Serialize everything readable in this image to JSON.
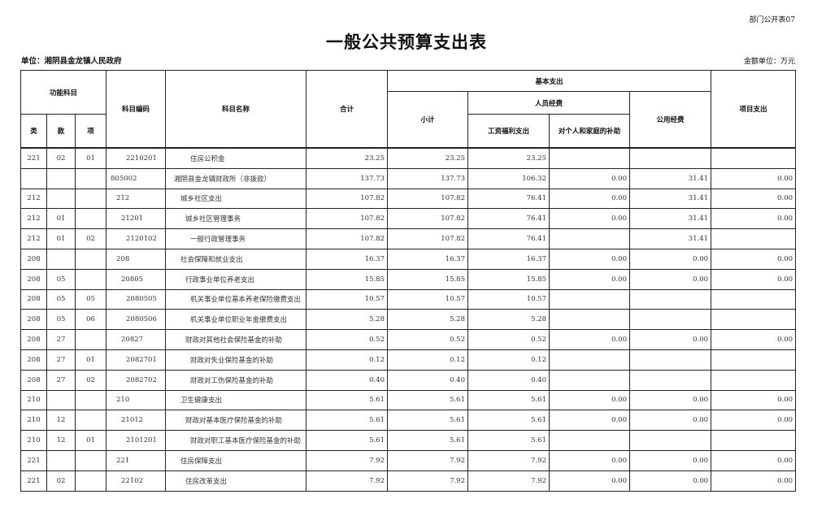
{
  "header": {
    "form_code": "部门公开表07",
    "title": "一般公共预算支出表",
    "unit": "单位：湘阴县金龙镇人民政府",
    "money_unit": "金额单位：万元"
  },
  "columns": {
    "func": "功能科目",
    "lei": "类",
    "kuan": "款",
    "xiang": "项",
    "code": "科目编码",
    "name": "科目名称",
    "total": "合计",
    "basic": "基本支出",
    "subtotal": "小计",
    "personnel": "人员经费",
    "salary": "工资福利支出",
    "subsidy": "对个人和家庭的补助",
    "public": "公用经费",
    "project": "项目支出"
  },
  "rows": [
    [
      "221",
      "02",
      "01",
      "2210201",
      "住房公积金",
      "23.25",
      "23.25",
      "23.25",
      "",
      "",
      ""
    ],
    [
      "",
      "",
      "",
      "805002",
      "湘阴县金龙镇财政所（非拨款）",
      "137.73",
      "137.73",
      "106.32",
      "0.00",
      "31.41",
      "0.00"
    ],
    [
      "212",
      "",
      "",
      "212",
      "城乡社区支出",
      "107.82",
      "107.82",
      "76.41",
      "0.00",
      "31.41",
      "0.00"
    ],
    [
      "212",
      "01",
      "",
      "21201",
      "城乡社区管理事务",
      "107.82",
      "107.82",
      "76.41",
      "0.00",
      "31.41",
      "0.00"
    ],
    [
      "212",
      "01",
      "02",
      "2120102",
      "一般行政管理事务",
      "107.82",
      "107.82",
      "76.41",
      "",
      "31.41",
      ""
    ],
    [
      "208",
      "",
      "",
      "208",
      "社会保障和就业支出",
      "16.37",
      "16.37",
      "16.37",
      "0.00",
      "0.00",
      "0.00"
    ],
    [
      "208",
      "05",
      "",
      "20805",
      "行政事业单位养老支出",
      "15.85",
      "15.85",
      "15.85",
      "0.00",
      "0.00",
      "0.00"
    ],
    [
      "208",
      "05",
      "05",
      "2080505",
      "机关事业单位基本养老保险缴费支出",
      "10.57",
      "10.57",
      "10.57",
      "",
      "",
      ""
    ],
    [
      "208",
      "05",
      "06",
      "2080506",
      "机关事业单位职业年金缴费支出",
      "5.28",
      "5.28",
      "5.28",
      "",
      "",
      ""
    ],
    [
      "208",
      "27",
      "",
      "20827",
      "财政对其他社会保险基金的补助",
      "0.52",
      "0.52",
      "0.52",
      "0.00",
      "0.00",
      "0.00"
    ],
    [
      "208",
      "27",
      "01",
      "2082701",
      "财政对失业保险基金的补助",
      "0.12",
      "0.12",
      "0.12",
      "",
      "",
      ""
    ],
    [
      "208",
      "27",
      "02",
      "2082702",
      "财政对工伤保险基金的补助",
      "0.40",
      "0.40",
      "0.40",
      "",
      "",
      ""
    ],
    [
      "210",
      "",
      "",
      "210",
      "卫生健康支出",
      "5.61",
      "5.61",
      "5.61",
      "0.00",
      "0.00",
      "0.00"
    ],
    [
      "210",
      "12",
      "",
      "21012",
      "财政对基本医疗保险基金的补助",
      "5.61",
      "5.61",
      "5.61",
      "0.00",
      "0.00",
      "0.00"
    ],
    [
      "210",
      "12",
      "01",
      "2101201",
      "财政对职工基本医疗保险基金的补助",
      "5.61",
      "5.61",
      "5.61",
      "",
      "",
      ""
    ],
    [
      "221",
      "",
      "",
      "221",
      "住房保障支出",
      "7.92",
      "7.92",
      "7.92",
      "0.00",
      "0.00",
      "0.00"
    ],
    [
      "221",
      "02",
      "",
      "22102",
      "住房改革支出",
      "7.92",
      "7.92",
      "7.92",
      "0.00",
      "0.00",
      "0.00"
    ]
  ]
}
